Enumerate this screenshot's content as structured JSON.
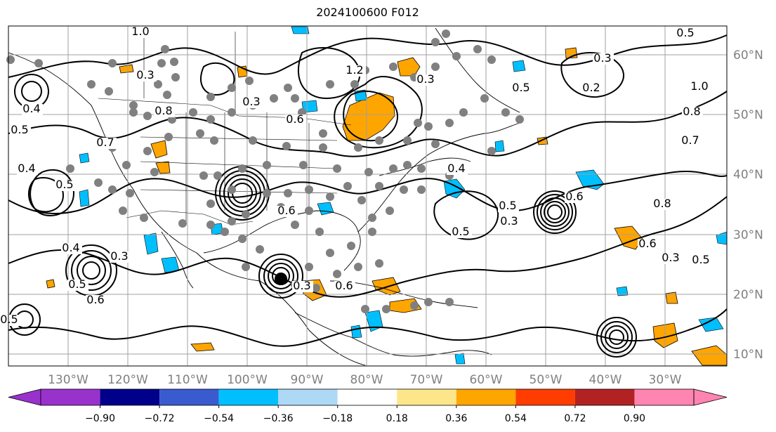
{
  "title": "2024100600 F012",
  "map": {
    "lon_labels": [
      "130°W",
      "120°W",
      "110°W",
      "100°W",
      "90°W",
      "80°W",
      "70°W",
      "60°W",
      "50°W",
      "40°W",
      "30°W"
    ],
    "lat_labels": [
      "60°N",
      "50°N",
      "40°N",
      "30°N",
      "20°N",
      "10°N"
    ],
    "contour_labels": [
      "1.0",
      "0.3",
      "0.8",
      "0.7",
      "0.4",
      "0.5",
      "0.6",
      "0.3",
      "1.2",
      "0.3",
      "0.4",
      "0.5",
      "0.6",
      "0.4",
      "0.5",
      "0.5",
      "0.3",
      "0.6",
      "0.5",
      "0.5",
      "0.3",
      "0.2",
      "1.0",
      "0.8",
      "0.7",
      "0.8",
      "0.6",
      "0.3",
      "0.5",
      "0.3",
      "0.6",
      "0.4",
      "0.3",
      "0.5",
      "0.6",
      "0.5"
    ]
  },
  "colorbar": {
    "ticks": [
      "−0.90",
      "−0.72",
      "−0.54",
      "−0.36",
      "−0.18",
      "0.18",
      "0.36",
      "0.54",
      "0.72",
      "0.90"
    ],
    "colors": [
      "#9932cc",
      "#00008b",
      "#3a5bd0",
      "#00bfff",
      "#add8f6",
      "#ffffff",
      "#fde68a",
      "#ffa500",
      "#ff3d00",
      "#b22222",
      "#ff85b0"
    ]
  }
}
